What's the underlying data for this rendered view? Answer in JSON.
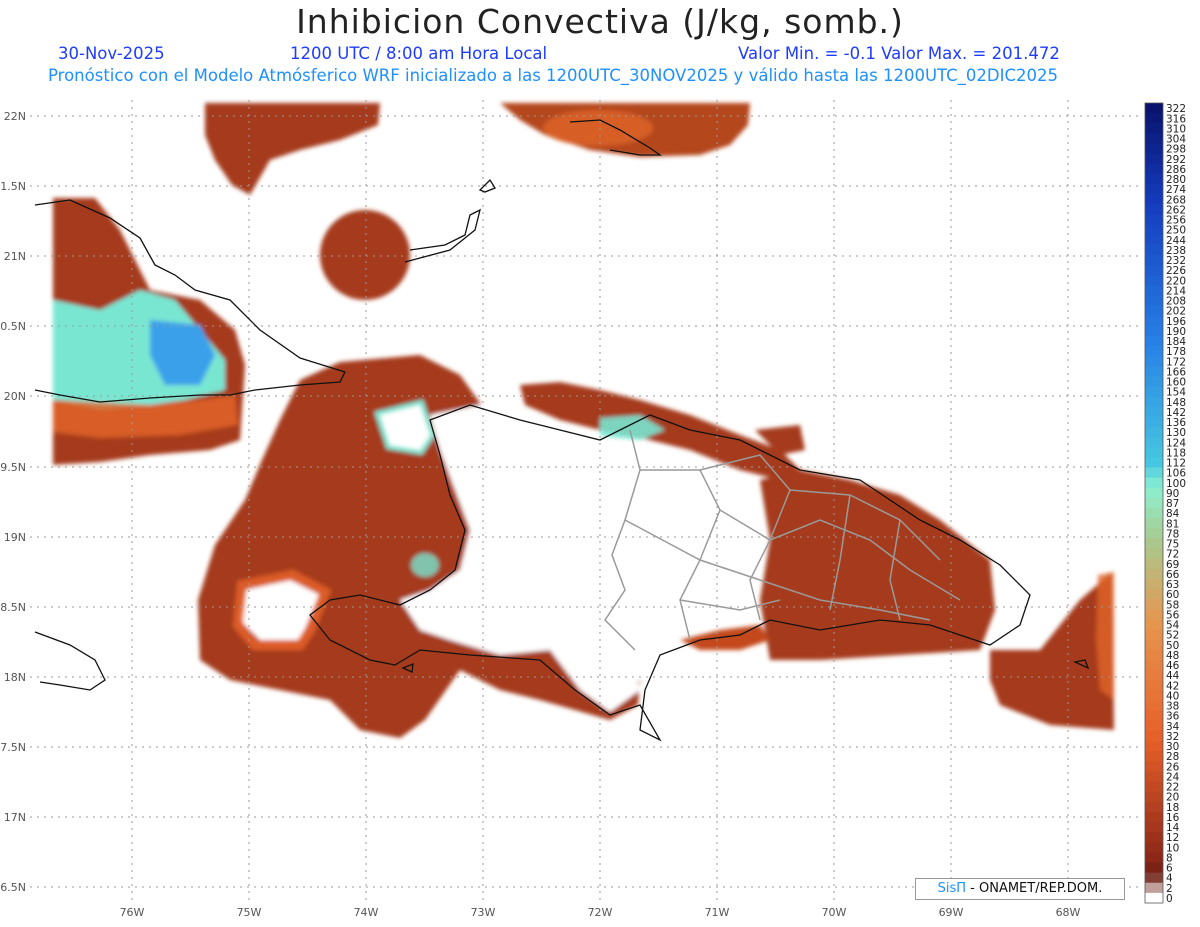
{
  "header": {
    "title": "Inhibicion Convectiva (J/kg, somb.)",
    "date": "30-Nov-2025",
    "time": "1200 UTC / 8:00 am Hora Local",
    "range": "Valor Min. = -0.1  Valor Max. = 201.472",
    "forecast": "Pronóstico con el Modelo Atmósferico WRF inicializado a las 1200UTC_30NOV2025 y válido hasta las  1200UTC_02DIC2025"
  },
  "map": {
    "lat_labels": [
      "22N",
      "1.5N",
      "21N",
      "0.5N",
      "20N",
      "9.5N",
      "19N",
      "8.5N",
      "18N",
      "7.5N",
      "17N",
      "6.5N"
    ],
    "lon_labels": [
      "76W",
      "75W",
      "74W",
      "73W",
      "72W",
      "71W",
      "70W",
      "69W",
      "68W"
    ],
    "field_color": "#9c3418",
    "accent_orange": "#e8642a",
    "accent_cyan": "#79e6d2",
    "accent_blue": "#3aa0ea"
  },
  "colorbar": {
    "labels": [
      "322",
      "316",
      "310",
      "304",
      "298",
      "292",
      "286",
      "280",
      "274",
      "268",
      "262",
      "256",
      "250",
      "244",
      "238",
      "232",
      "226",
      "220",
      "214",
      "208",
      "202",
      "196",
      "190",
      "184",
      "178",
      "172",
      "166",
      "160",
      "154",
      "148",
      "142",
      "136",
      "130",
      "124",
      "118",
      "112",
      "106",
      "100",
      "90",
      "87",
      "84",
      "81",
      "78",
      "75",
      "72",
      "69",
      "66",
      "63",
      "60",
      "58",
      "56",
      "54",
      "52",
      "50",
      "48",
      "46",
      "44",
      "42",
      "40",
      "38",
      "36",
      "34",
      "32",
      "30",
      "28",
      "26",
      "24",
      "22",
      "20",
      "18",
      "16",
      "14",
      "12",
      "10",
      "8",
      "6",
      "4",
      "2",
      "0"
    ]
  },
  "credit": {
    "brand": "SisΠ",
    "org": "- ONAMET/REP.DOM."
  }
}
